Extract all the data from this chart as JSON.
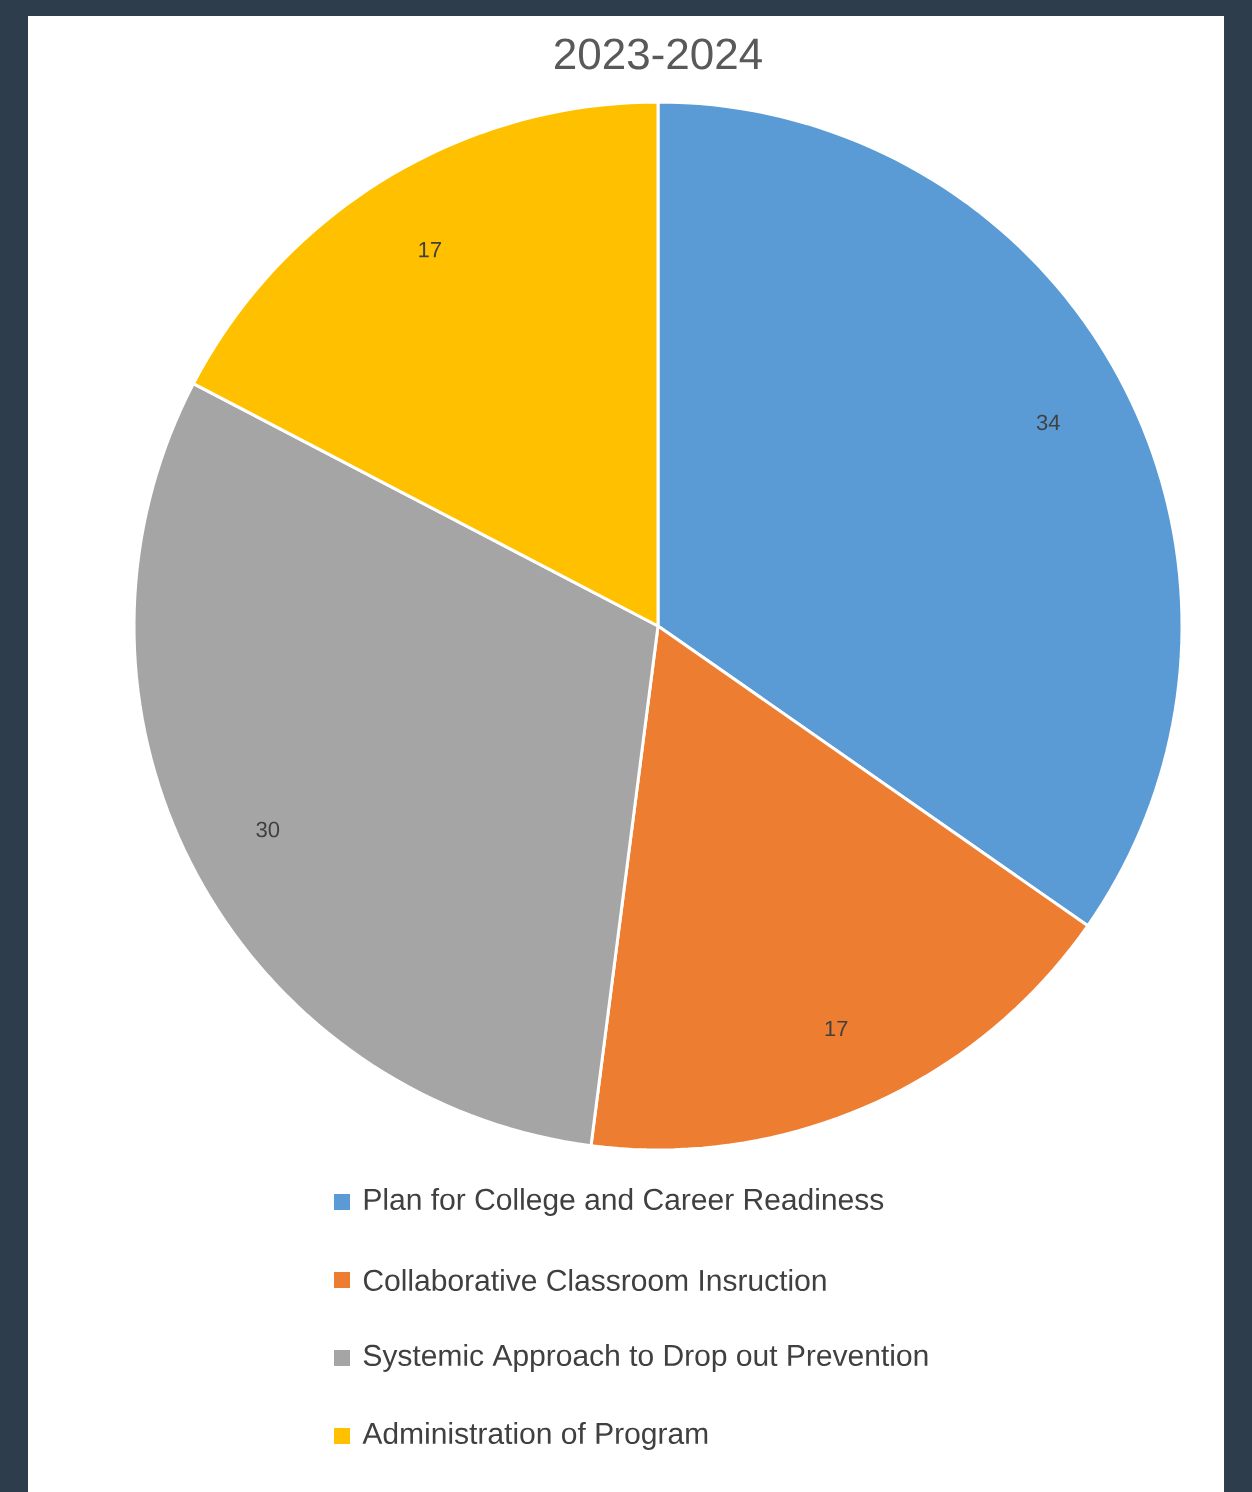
{
  "chart_data": {
    "type": "pie",
    "title": "2023-2024",
    "categories": [
      "Plan for College and Career Readiness",
      "Collaborative Classroom Insruction",
      "Systemic Approach to Drop out Prevention",
      "Administration of Program"
    ],
    "values": [
      34,
      17,
      30,
      17
    ],
    "colors": [
      "#5b9bd5",
      "#ed7d31",
      "#a5a5a5",
      "#ffc000"
    ],
    "data_labels": true,
    "legend": "bottom"
  }
}
